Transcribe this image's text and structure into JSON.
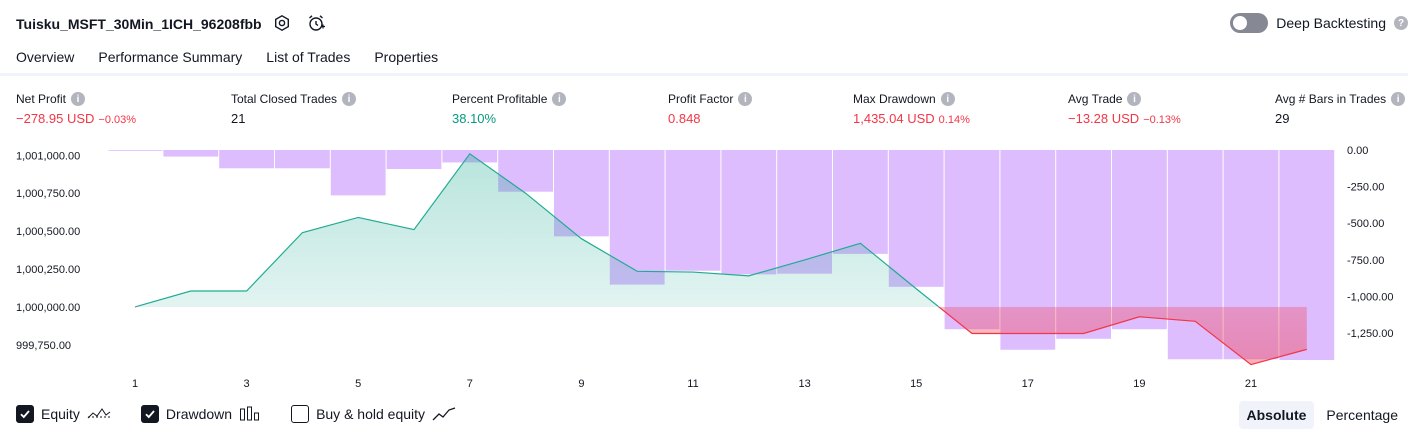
{
  "header": {
    "strategy_title": "Tuisku_MSFT_30Min_1ICH_96208fbb",
    "settings_icon": "gear-icon",
    "alert_icon": "alarm-clock-plus-icon",
    "deep_backtesting_label": "Deep Backtesting",
    "deep_backtesting_on": false
  },
  "tabs": [
    {
      "label": "Overview",
      "active": true
    },
    {
      "label": "Performance Summary",
      "active": false
    },
    {
      "label": "List of Trades",
      "active": false
    },
    {
      "label": "Properties",
      "active": false
    }
  ],
  "metrics": [
    {
      "label": "Net Profit",
      "value": "−278.95 USD",
      "pct": "−0.03%",
      "tone": "red"
    },
    {
      "label": "Total Closed Trades",
      "value": "21",
      "pct": "",
      "tone": "dark"
    },
    {
      "label": "Percent Profitable",
      "value": "38.10%",
      "pct": "",
      "tone": "green"
    },
    {
      "label": "Profit Factor",
      "value": "0.848",
      "pct": "",
      "tone": "red"
    },
    {
      "label": "Max Drawdown",
      "value": "1,435.04 USD",
      "pct": "0.14%",
      "tone": "red"
    },
    {
      "label": "Avg Trade",
      "value": "−13.28 USD",
      "pct": "−0.13%",
      "tone": "red"
    },
    {
      "label": "Avg # Bars in Trades",
      "value": "29",
      "pct": "",
      "tone": "dark"
    }
  ],
  "chart_data": {
    "type": "area",
    "x_ticks": [
      "1",
      "3",
      "5",
      "7",
      "9",
      "11",
      "13",
      "15",
      "17",
      "19",
      "21"
    ],
    "left_axis": {
      "ticks": [
        "1,001,000.00",
        "1,000,750.00",
        "1,000,500.00",
        "1,000,250.00",
        "1,000,000.00",
        "999,750.00"
      ],
      "ylim": [
        999650,
        1001035
      ]
    },
    "right_axis": {
      "ticks": [
        "0.00",
        "-250.00",
        "-500.00",
        "-750.00",
        "-1,000.00",
        "-1,250.00"
      ],
      "ylim": [
        -1435,
        0
      ]
    },
    "equity": {
      "baseline": 1000000,
      "x": [
        1,
        2,
        3,
        4,
        5,
        6,
        7,
        8,
        9,
        10,
        11,
        12,
        13,
        14,
        15,
        16,
        17,
        18,
        19,
        20,
        21,
        22
      ],
      "values": [
        1000000,
        1000105,
        1000105,
        1000490,
        1000590,
        1000510,
        1001010,
        1000750,
        1000450,
        1000235,
        1000230,
        1000205,
        1000310,
        1000420,
        1000120,
        999825,
        999825,
        999825,
        999935,
        999905,
        999620,
        999720
      ]
    },
    "drawdown": {
      "x": [
        1,
        2,
        3,
        4,
        5,
        6,
        7,
        8,
        9,
        10,
        11,
        12,
        13,
        14,
        15,
        16,
        17,
        18,
        19,
        20,
        21,
        22
      ],
      "values": [
        -5,
        -45,
        -125,
        -125,
        -310,
        -130,
        -85,
        -285,
        -590,
        -920,
        -825,
        -850,
        -845,
        -710,
        -935,
        -1225,
        -1365,
        -1290,
        -1225,
        -1430,
        -1430,
        -1435
      ]
    },
    "colors": {
      "equity_line_up": "#22ab94",
      "equity_line_down": "#f23645",
      "equity_fill_up": "#22ab94",
      "equity_fill_down": "#f23645",
      "drawdown_bar": "#d1a3ff"
    }
  },
  "legend": [
    {
      "label": "Equity",
      "checked": true,
      "icon": "equity-line-icon"
    },
    {
      "label": "Drawdown",
      "checked": true,
      "icon": "drawdown-bars-icon"
    },
    {
      "label": "Buy & hold equity",
      "checked": false,
      "icon": "buy-hold-line-icon"
    }
  ],
  "view_modes": [
    {
      "label": "Absolute",
      "active": true
    },
    {
      "label": "Percentage",
      "active": false
    }
  ]
}
